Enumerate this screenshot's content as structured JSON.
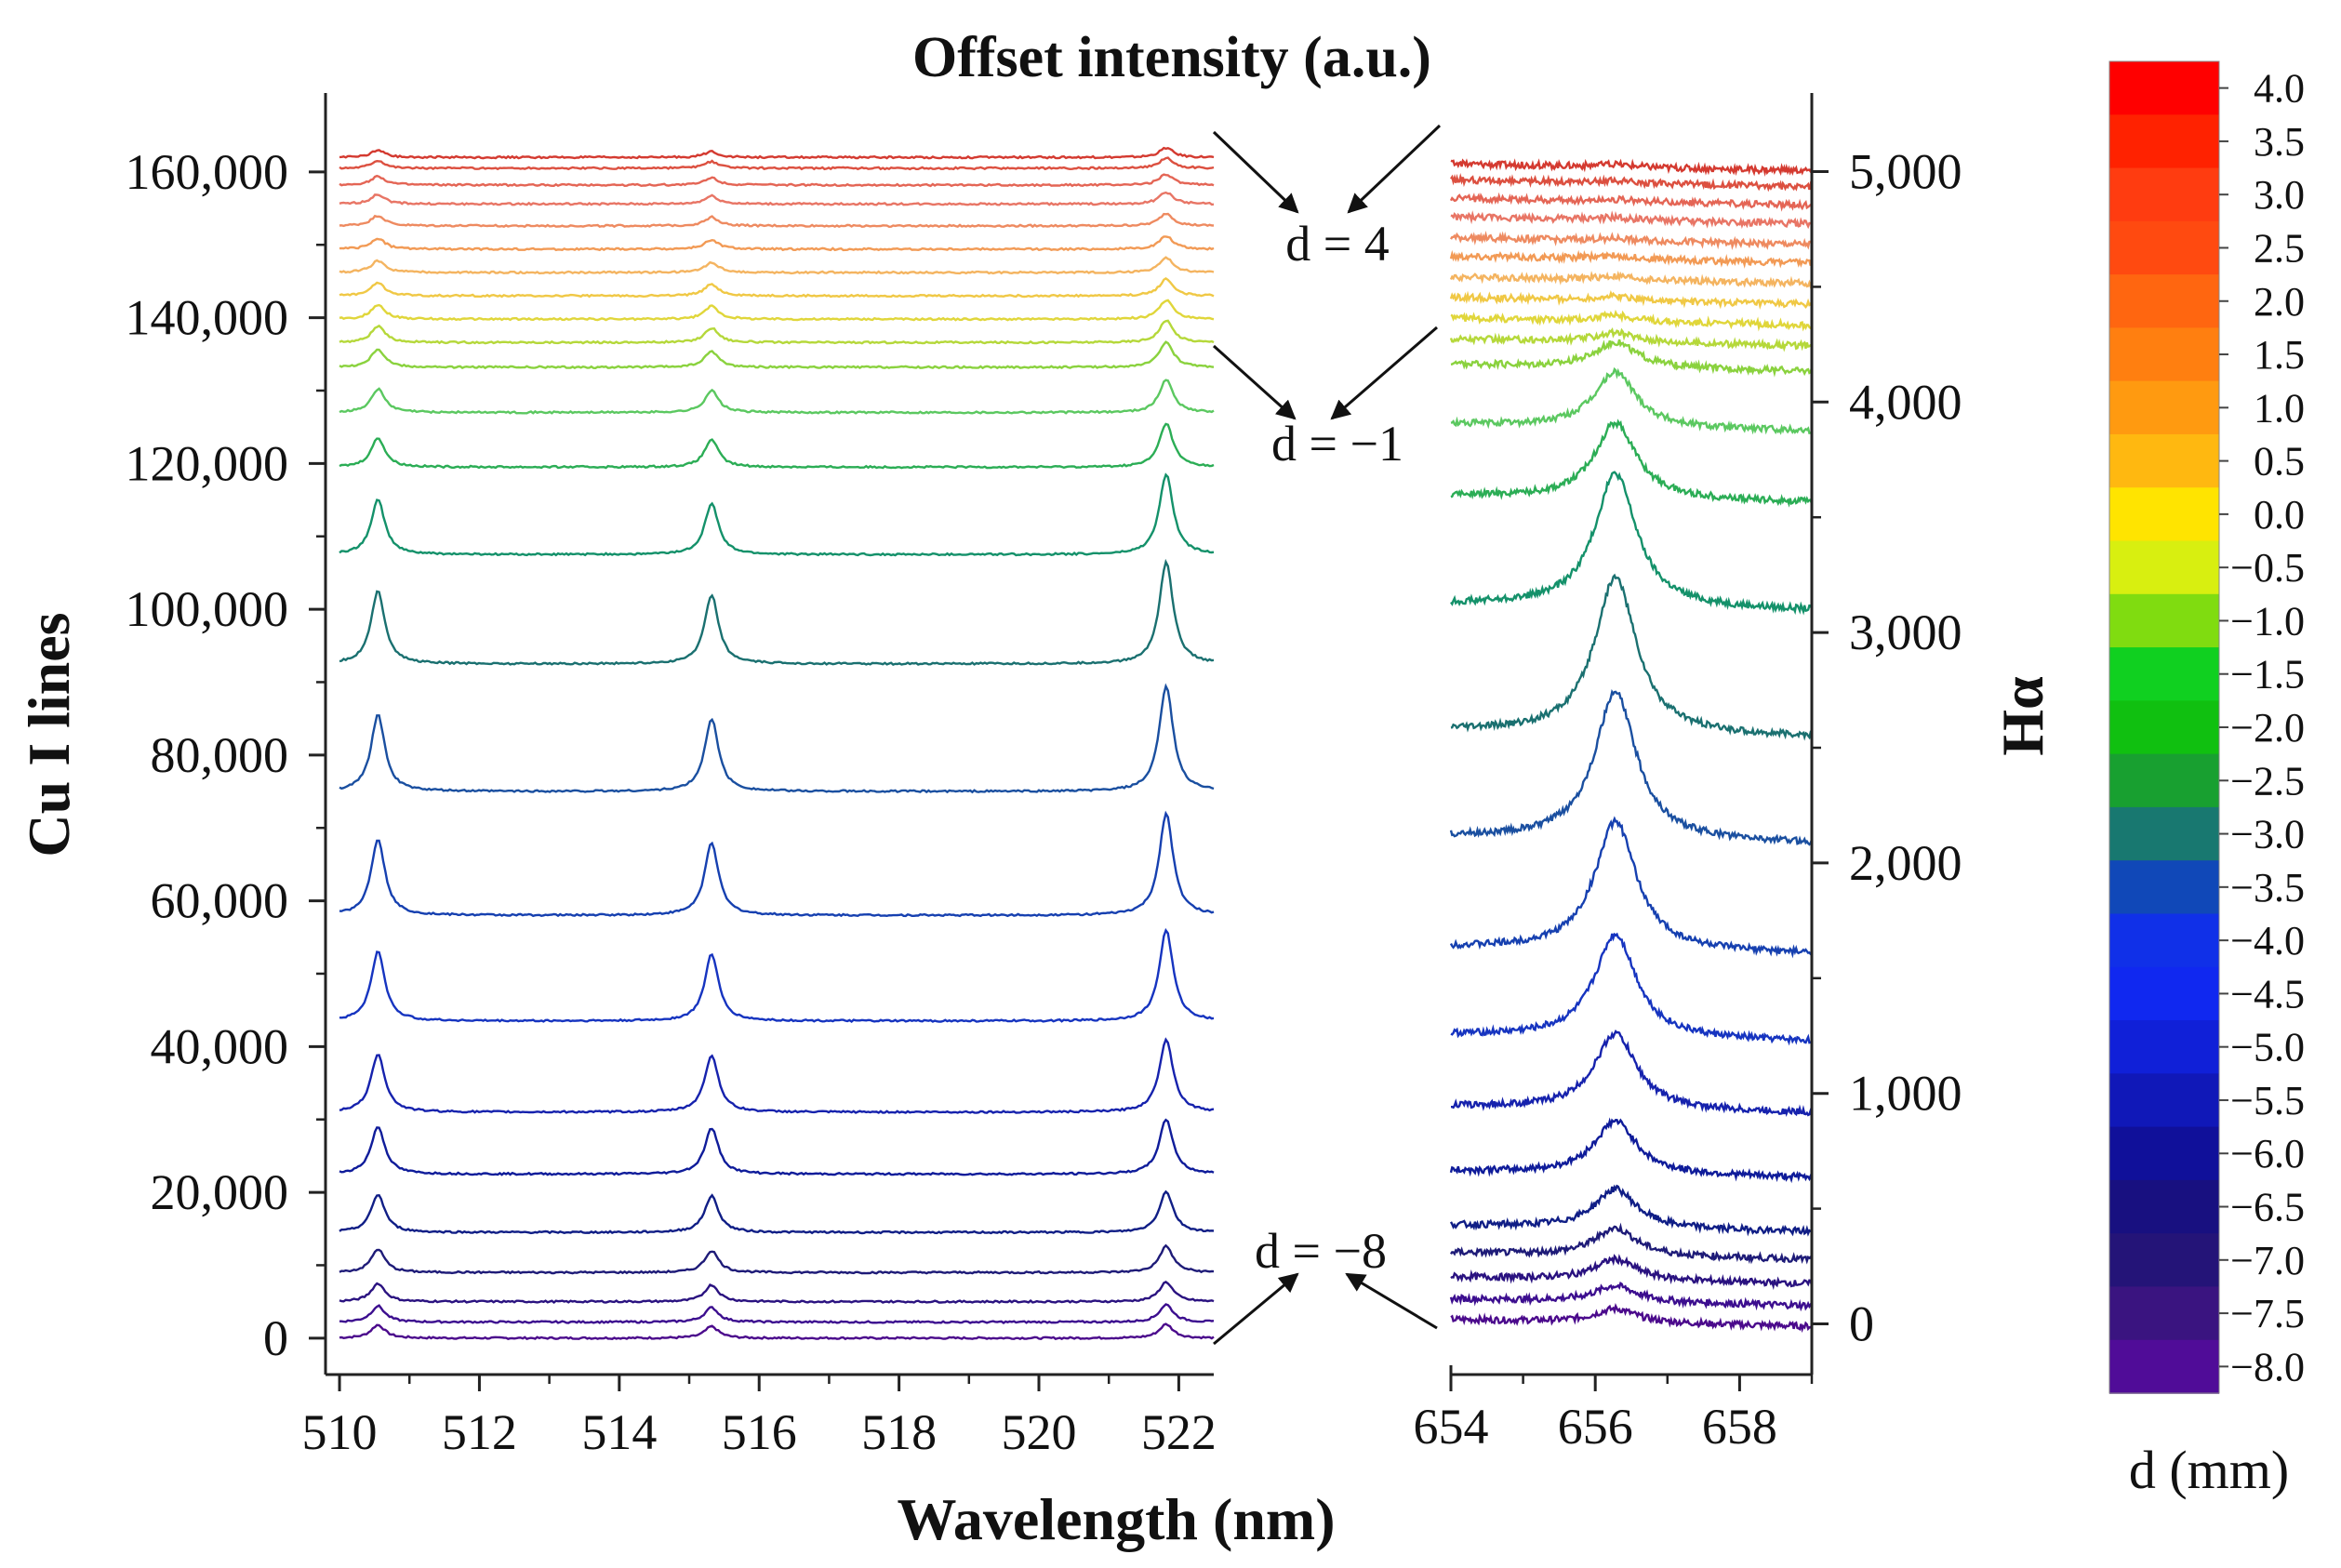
{
  "chart_data": {
    "type": "line",
    "title": "Offset intensity (a.u.)",
    "xlabel": "Wavelength (nm)",
    "left_panel": {
      "name": "Cu I lines",
      "ylabel": "Cu I lines",
      "xlim": [
        509.8,
        522.5
      ],
      "ylim": [
        -5000,
        167000
      ],
      "x_ticks": [
        "510",
        "512",
        "514",
        "516",
        "518",
        "520",
        "522"
      ],
      "y_ticks": [
        "0",
        "20,000",
        "40,000",
        "60,000",
        "80,000",
        "100,000",
        "120,000",
        "140,000",
        "160,000"
      ],
      "peak_centers_nm": [
        510.55,
        515.32,
        521.82
      ],
      "peak_width_nm": 0.12
    },
    "right_panel": {
      "name": "Hα",
      "ylabel": "Hα",
      "xlim": [
        654,
        659
      ],
      "ylim": [
        -220,
        5220
      ],
      "x_ticks": [
        "654",
        "656",
        "658"
      ],
      "y_ticks": [
        "0",
        "1,000",
        "2,000",
        "3,000",
        "4,000",
        "5,000"
      ],
      "peak_center_nm": 656.28,
      "peak_width_nm": 0.35
    },
    "series": [
      {
        "d": -8.0,
        "color": "#4b0a8c",
        "cu_offset": 0,
        "cu_peaks": [
          1800,
          1600,
          1900
        ],
        "ha_offset": 5,
        "ha_amp": 60
      },
      {
        "d": -7.5,
        "color": "#3c0e8f",
        "cu_offset": 2200,
        "cu_peaks": [
          2200,
          2000,
          2400
        ],
        "ha_offset": 95,
        "ha_amp": 70
      },
      {
        "d": -7.0,
        "color": "#2a1280",
        "cu_offset": 5000,
        "cu_peaks": [
          2500,
          2300,
          2700
        ],
        "ha_offset": 190,
        "ha_amp": 90
      },
      {
        "d": -6.5,
        "color": "#1e1b78",
        "cu_offset": 9000,
        "cu_peaks": [
          3200,
          3000,
          3600
        ],
        "ha_offset": 295,
        "ha_amp": 120
      },
      {
        "d": -6.0,
        "color": "#101e86",
        "cu_offset": 14500,
        "cu_peaks": [
          5200,
          5000,
          5600
        ],
        "ha_offset": 415,
        "ha_amp": 170
      },
      {
        "d": -5.5,
        "color": "#0f1c9a",
        "cu_offset": 22500,
        "cu_peaks": [
          6500,
          6300,
          7500
        ],
        "ha_offset": 650,
        "ha_amp": 230
      },
      {
        "d": -5.0,
        "color": "#1622ad",
        "cu_offset": 31000,
        "cu_peaks": [
          8000,
          7800,
          10000
        ],
        "ha_offset": 930,
        "ha_amp": 330
      },
      {
        "d": -4.5,
        "color": "#1634c0",
        "cu_offset": 43500,
        "cu_peaks": [
          9500,
          9200,
          12500
        ],
        "ha_offset": 1240,
        "ha_amp": 450
      },
      {
        "d": -4.0,
        "color": "#1640b0",
        "cu_offset": 58000,
        "cu_peaks": [
          10500,
          10000,
          14000
        ],
        "ha_offset": 1620,
        "ha_amp": 560
      },
      {
        "d": -3.5,
        "color": "#1a4fa0",
        "cu_offset": 75000,
        "cu_peaks": [
          10500,
          10000,
          14500
        ],
        "ha_offset": 2100,
        "ha_amp": 640
      },
      {
        "d": -3.0,
        "color": "#1a7070",
        "cu_offset": 92500,
        "cu_peaks": [
          10000,
          9500,
          14000
        ],
        "ha_offset": 2560,
        "ha_amp": 680
      },
      {
        "d": -2.5,
        "color": "#14916a",
        "cu_offset": 107500,
        "cu_peaks": [
          7500,
          7000,
          11000
        ],
        "ha_offset": 3110,
        "ha_amp": 580
      },
      {
        "d": -2.0,
        "color": "#2bad55",
        "cu_offset": 119500,
        "cu_peaks": [
          4000,
          3800,
          6000
        ],
        "ha_offset": 3580,
        "ha_amp": 330
      },
      {
        "d": -1.5,
        "color": "#5bc860",
        "cu_offset": 127000,
        "cu_peaks": [
          3200,
          3000,
          4500
        ],
        "ha_offset": 3890,
        "ha_amp": 240
      },
      {
        "d": -1.0,
        "color": "#8ad23e",
        "cu_offset": 133200,
        "cu_peaks": [
          2500,
          2200,
          3500
        ],
        "ha_offset": 4150,
        "ha_amp": 110
      },
      {
        "d": -0.5,
        "color": "#b5d83a",
        "cu_offset": 136600,
        "cu_peaks": [
          2200,
          2000,
          3000
        ],
        "ha_offset": 4260,
        "ha_amp": 40
      },
      {
        "d": 0.0,
        "color": "#e0d63a",
        "cu_offset": 139800,
        "cu_peaks": [
          2000,
          1800,
          2600
        ],
        "ha_offset": 4350,
        "ha_amp": 25
      },
      {
        "d": 0.5,
        "color": "#f0c845",
        "cu_offset": 143000,
        "cu_peaks": [
          1800,
          1600,
          2300
        ],
        "ha_offset": 4440,
        "ha_amp": 20
      },
      {
        "d": 1.0,
        "color": "#f4b460",
        "cu_offset": 146200,
        "cu_peaks": [
          1600,
          1400,
          2000
        ],
        "ha_offset": 4530,
        "ha_amp": 15
      },
      {
        "d": 1.5,
        "color": "#f29a55",
        "cu_offset": 149400,
        "cu_peaks": [
          1500,
          1300,
          1800
        ],
        "ha_offset": 4620,
        "ha_amp": 15
      },
      {
        "d": 2.0,
        "color": "#ee8a60",
        "cu_offset": 152600,
        "cu_peaks": [
          1400,
          1200,
          1700
        ],
        "ha_offset": 4700,
        "ha_amp": 10
      },
      {
        "d": 2.5,
        "color": "#e87565",
        "cu_offset": 155600,
        "cu_peaks": [
          1300,
          1100,
          1600
        ],
        "ha_offset": 4790,
        "ha_amp": 10
      },
      {
        "d": 3.0,
        "color": "#e46555",
        "cu_offset": 158200,
        "cu_peaks": [
          1200,
          1000,
          1500
        ],
        "ha_offset": 4870,
        "ha_amp": 10
      },
      {
        "d": 3.5,
        "color": "#dc5040",
        "cu_offset": 160500,
        "cu_peaks": [
          1100,
          900,
          1400
        ],
        "ha_offset": 4950,
        "ha_amp": 10
      },
      {
        "d": 4.0,
        "color": "#d43a30",
        "cu_offset": 162000,
        "cu_peaks": [
          1000,
          800,
          1300
        ],
        "ha_offset": 5020,
        "ha_amp": 10
      }
    ],
    "annotations": [
      {
        "text": "d = 4"
      },
      {
        "text": "d = −1"
      },
      {
        "text": "d = −8"
      }
    ],
    "colorbar": {
      "title": "d (mm)",
      "labels": [
        "4.0",
        "3.5",
        "3.0",
        "2.5",
        "2.0",
        "1.5",
        "1.0",
        "0.5",
        "0.0",
        "−0.5",
        "−1.0",
        "−1.5",
        "−2.0",
        "−2.5",
        "−3.0",
        "−3.5",
        "−4.0",
        "−4.5",
        "−5.0",
        "−5.5",
        "−6.0",
        "−6.5",
        "−7.0",
        "−7.5",
        "−8.0"
      ],
      "colors": [
        "#ff0000",
        "#ff2200",
        "#ff3c10",
        "#ff4a10",
        "#ff6610",
        "#ff7f10",
        "#ff9a10",
        "#ffb810",
        "#ffe400",
        "#d8ef10",
        "#80dc10",
        "#10d020",
        "#10c010",
        "#18a030",
        "#187870",
        "#1048b8",
        "#1030e8",
        "#1028f0",
        "#1020d8",
        "#1018b8",
        "#10109a",
        "#181080",
        "#241478",
        "#3a1480",
        "#500c98"
      ]
    }
  }
}
